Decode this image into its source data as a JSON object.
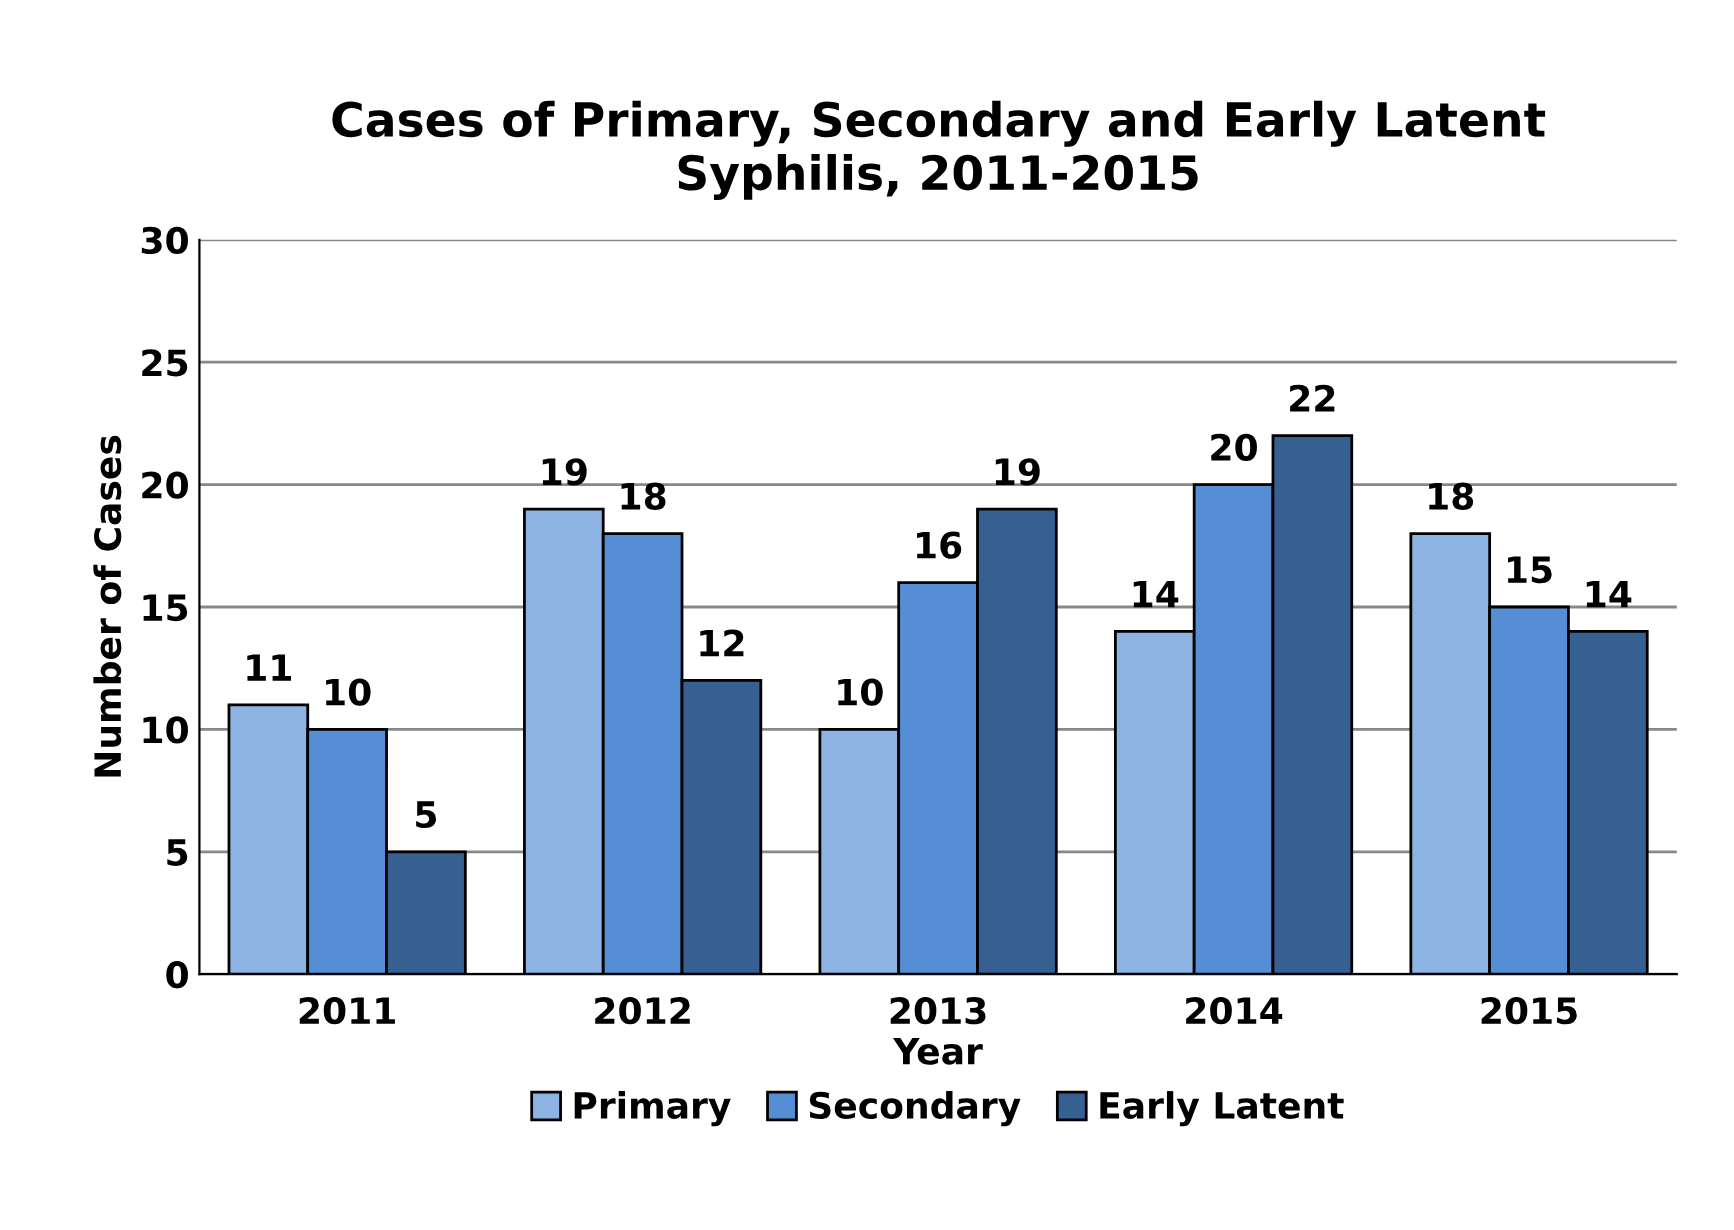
{
  "chart_data": {
    "type": "bar",
    "title": "Cases of Primary, Secondary and Early Latent\nSyphilis, 2011-2015",
    "xlabel": "Year",
    "ylabel": "Number of Cases",
    "categories": [
      "2011",
      "2012",
      "2013",
      "2014",
      "2015"
    ],
    "series": [
      {
        "name": "Primary",
        "color": "#8db3e2",
        "values": [
          11,
          19,
          10,
          14,
          18
        ]
      },
      {
        "name": "Secondary",
        "color": "#558ed5",
        "values": [
          10,
          18,
          16,
          20,
          15
        ]
      },
      {
        "name": "Early Latent",
        "color": "#376092",
        "values": [
          5,
          12,
          19,
          22,
          14
        ]
      }
    ],
    "ylim": [
      0,
      30
    ],
    "yticks": [
      0,
      5,
      10,
      15,
      20,
      25,
      30
    ],
    "grid": "y",
    "legend": "bottom",
    "data_labels": true
  }
}
